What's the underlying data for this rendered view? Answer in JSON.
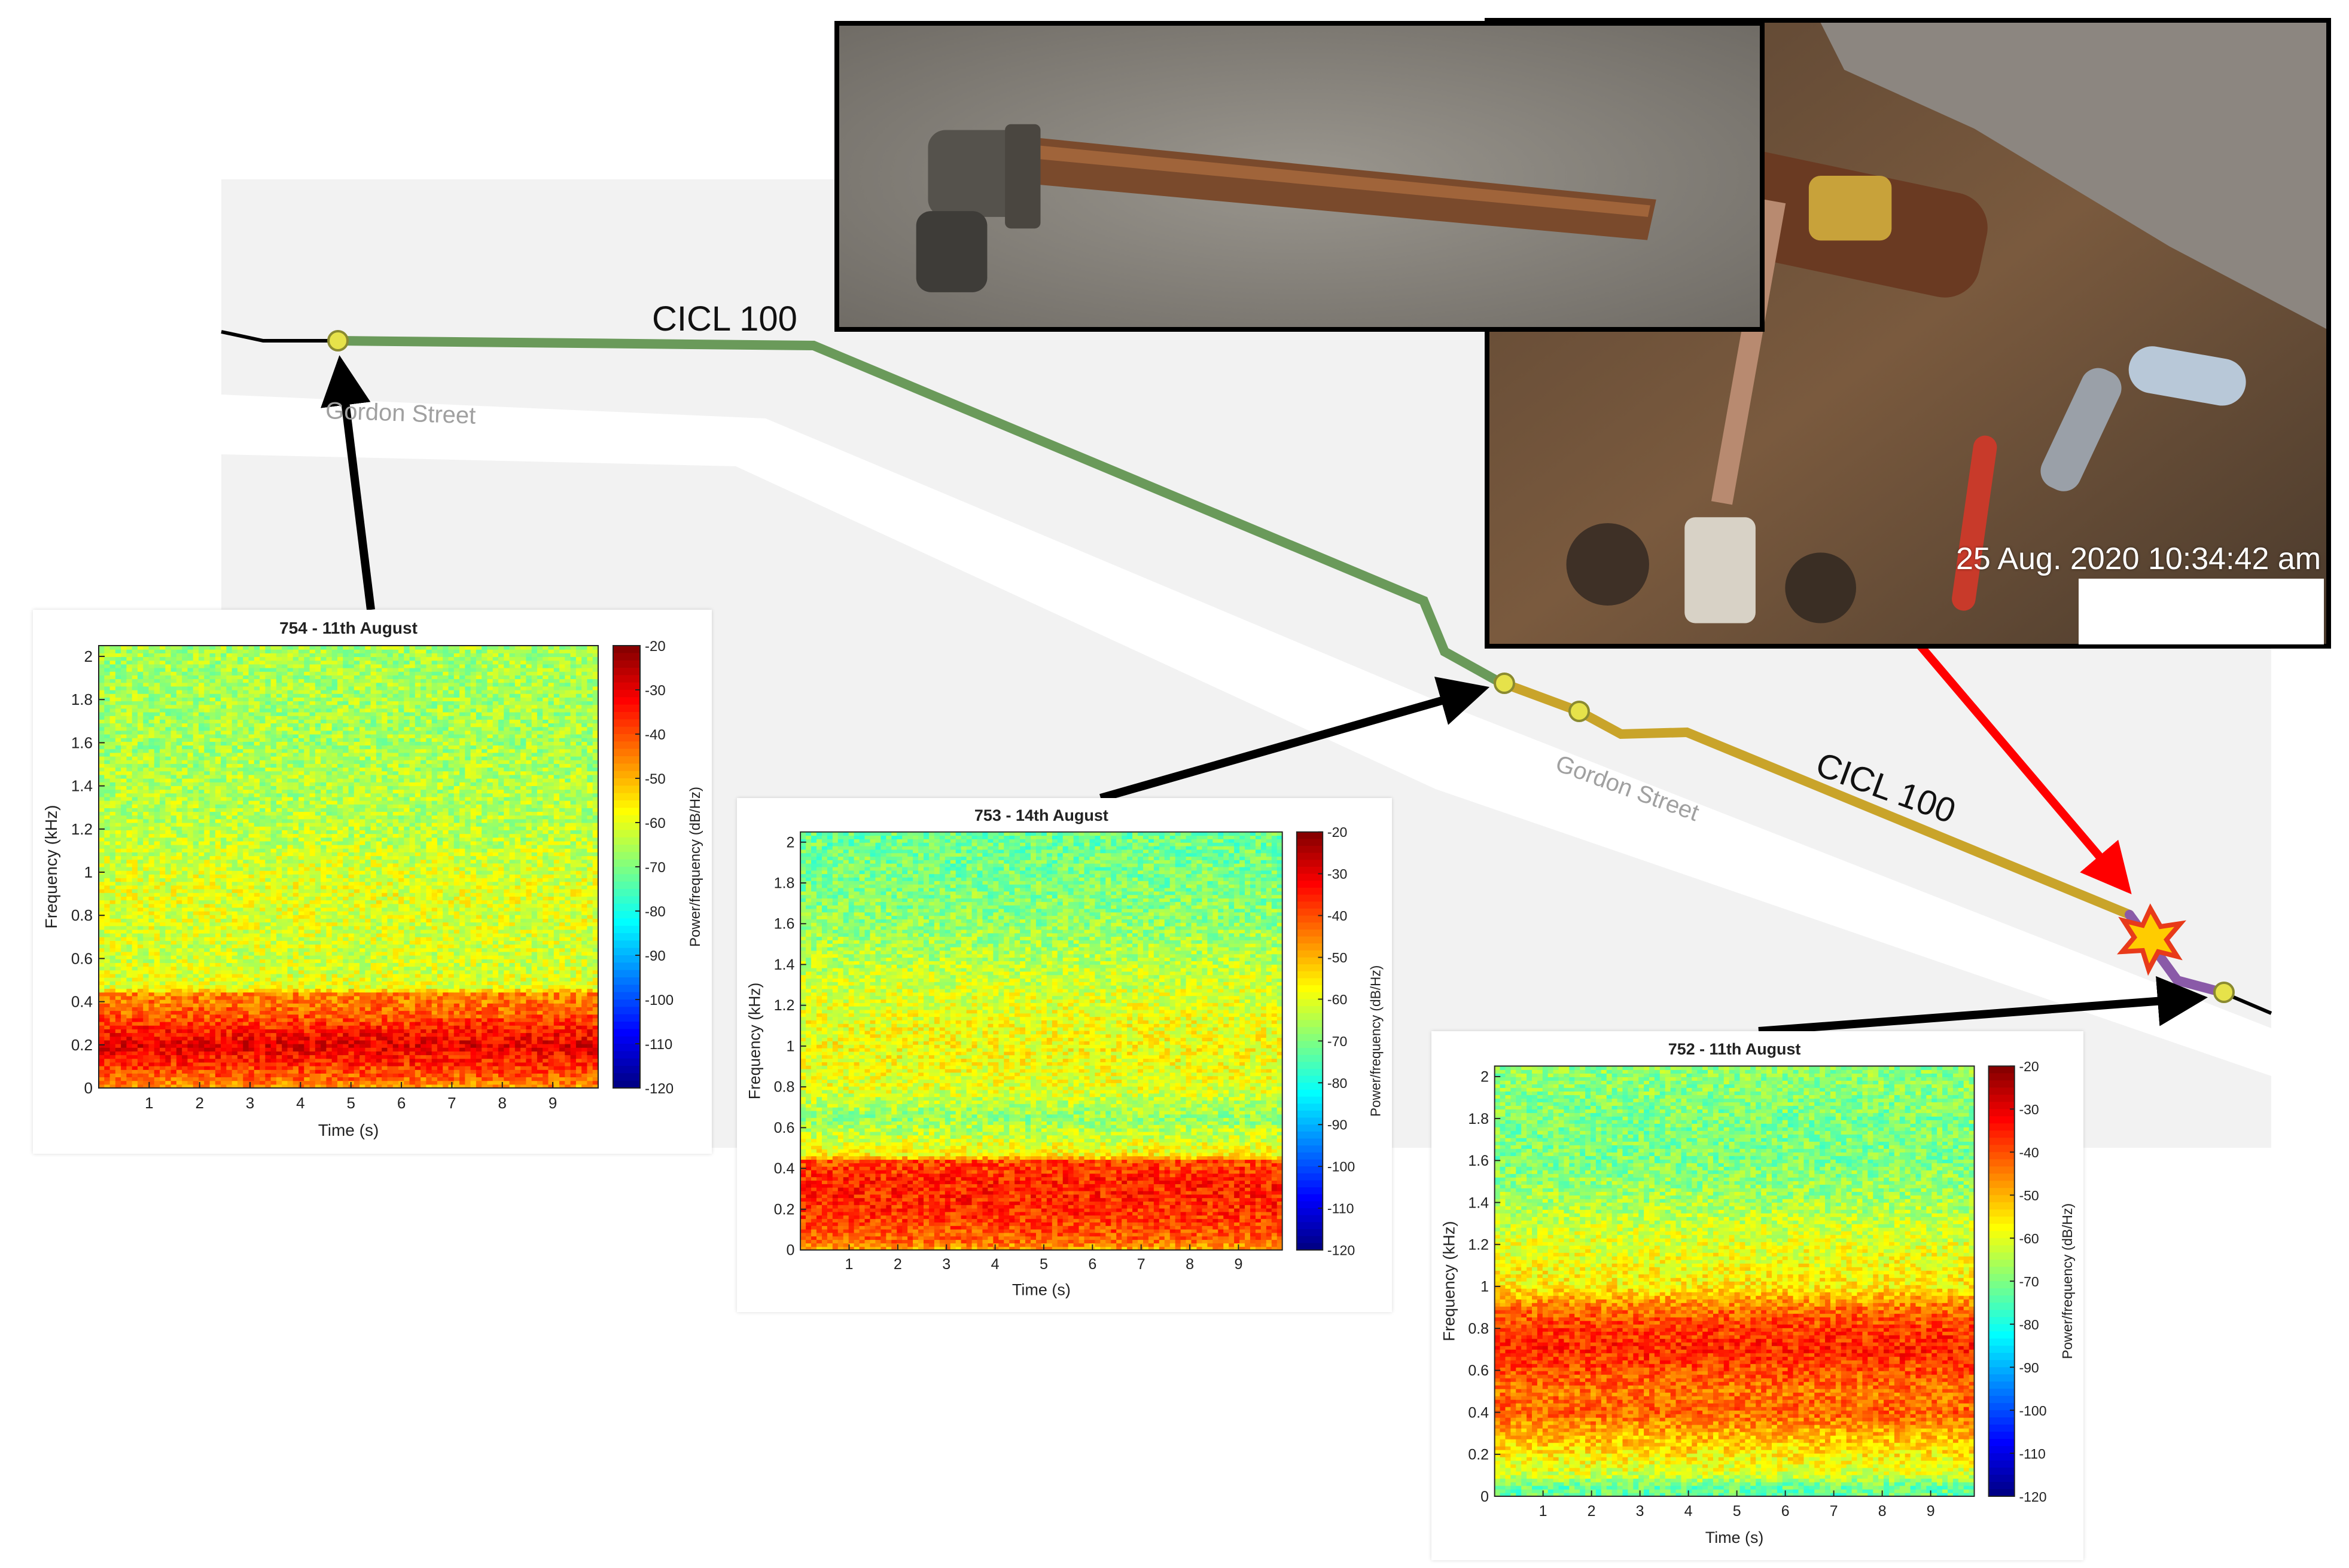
{
  "map": {
    "street_labels": [
      "Gordon Street",
      "Gordon Street"
    ],
    "pipe_labels": [
      "CICL 100",
      "CICL 100"
    ],
    "pipe_colors": {
      "upstream": "#6a9a5a",
      "middle": "#c9a42a",
      "downstream": "#8a5aa8",
      "main": "#000000"
    },
    "leak_marker_color": "#ffcc00",
    "leak_arrow_color": "#ff0000",
    "logger_arrow_color": "#000000"
  },
  "photos": {
    "close_up": {
      "subject": "corroded pipe section on asphalt"
    },
    "excavation": {
      "subject": "service connection in excavation",
      "timestamp": "25 Aug. 2020 10:34:42 am"
    }
  },
  "chart_data": [
    {
      "type": "heatmap",
      "title": "754 - 11th August",
      "xlabel": "Time (s)",
      "ylabel": "Frequency (kHz)",
      "colorbar_label": "Power/frequency (dB/Hz)",
      "xlim": [
        0,
        9.9
      ],
      "ylim": [
        0,
        2.05
      ],
      "xticks": [
        1,
        2,
        3,
        4,
        5,
        6,
        7,
        8,
        9
      ],
      "yticks": [
        0,
        0.2,
        0.4,
        0.6,
        0.8,
        1,
        1.2,
        1.4,
        1.6,
        1.8,
        2
      ],
      "clim": [
        -120,
        -20
      ],
      "cticks": [
        -20,
        -30,
        -40,
        -50,
        -60,
        -70,
        -80,
        -90,
        -100,
        -110,
        -120
      ],
      "colormap": "jet",
      "profile_khz_db": [
        [
          0,
          -48
        ],
        [
          0.05,
          -42
        ],
        [
          0.12,
          -36
        ],
        [
          0.2,
          -30
        ],
        [
          0.28,
          -36
        ],
        [
          0.35,
          -42
        ],
        [
          0.44,
          -46
        ],
        [
          0.46,
          -60
        ],
        [
          0.6,
          -62
        ],
        [
          0.9,
          -60
        ],
        [
          1.2,
          -64
        ],
        [
          1.6,
          -66
        ],
        [
          2.05,
          -66
        ]
      ]
    },
    {
      "type": "heatmap",
      "title": "753 - 14th August",
      "xlabel": "Time (s)",
      "ylabel": "Frequency (kHz)",
      "colorbar_label": "Power/frequency (dB/Hz)",
      "xlim": [
        0,
        9.9
      ],
      "ylim": [
        0,
        2.05
      ],
      "xticks": [
        1,
        2,
        3,
        4,
        5,
        6,
        7,
        8,
        9
      ],
      "yticks": [
        0,
        0.2,
        0.4,
        0.6,
        0.8,
        1,
        1.2,
        1.4,
        1.6,
        1.8,
        2
      ],
      "clim": [
        -120,
        -20
      ],
      "cticks": [
        -20,
        -30,
        -40,
        -50,
        -60,
        -70,
        -80,
        -90,
        -100,
        -110,
        -120
      ],
      "colormap": "jet",
      "profile_khz_db": [
        [
          0,
          -50
        ],
        [
          0.05,
          -42
        ],
        [
          0.15,
          -38
        ],
        [
          0.25,
          -36
        ],
        [
          0.35,
          -36
        ],
        [
          0.44,
          -40
        ],
        [
          0.46,
          -56
        ],
        [
          0.55,
          -62
        ],
        [
          0.65,
          -68
        ],
        [
          0.8,
          -60
        ],
        [
          1.0,
          -58
        ],
        [
          1.2,
          -60
        ],
        [
          1.6,
          -68
        ],
        [
          1.8,
          -70
        ],
        [
          2.05,
          -72
        ]
      ]
    },
    {
      "type": "heatmap",
      "title": "752 - 11th August",
      "xlabel": "Time (s)",
      "ylabel": "Frequency (kHz)",
      "colorbar_label": "Power/frequency (dB/Hz)",
      "xlim": [
        0,
        9.9
      ],
      "ylim": [
        0,
        2.05
      ],
      "xticks": [
        1,
        2,
        3,
        4,
        5,
        6,
        7,
        8,
        9
      ],
      "yticks": [
        0,
        0.2,
        0.4,
        0.6,
        0.8,
        1,
        1.2,
        1.4,
        1.6,
        1.8,
        2
      ],
      "clim": [
        -120,
        -20
      ],
      "cticks": [
        -20,
        -30,
        -40,
        -50,
        -60,
        -70,
        -80,
        -90,
        -100,
        -110,
        -120
      ],
      "colormap": "jet",
      "profile_khz_db": [
        [
          0,
          -72
        ],
        [
          0.05,
          -72
        ],
        [
          0.1,
          -62
        ],
        [
          0.2,
          -56
        ],
        [
          0.3,
          -50
        ],
        [
          0.4,
          -42
        ],
        [
          0.5,
          -44
        ],
        [
          0.6,
          -40
        ],
        [
          0.7,
          -36
        ],
        [
          0.8,
          -38
        ],
        [
          0.9,
          -44
        ],
        [
          1.0,
          -56
        ],
        [
          1.2,
          -60
        ],
        [
          1.4,
          -66
        ],
        [
          1.6,
          -70
        ],
        [
          1.8,
          -70
        ],
        [
          2.05,
          -68
        ]
      ]
    }
  ]
}
